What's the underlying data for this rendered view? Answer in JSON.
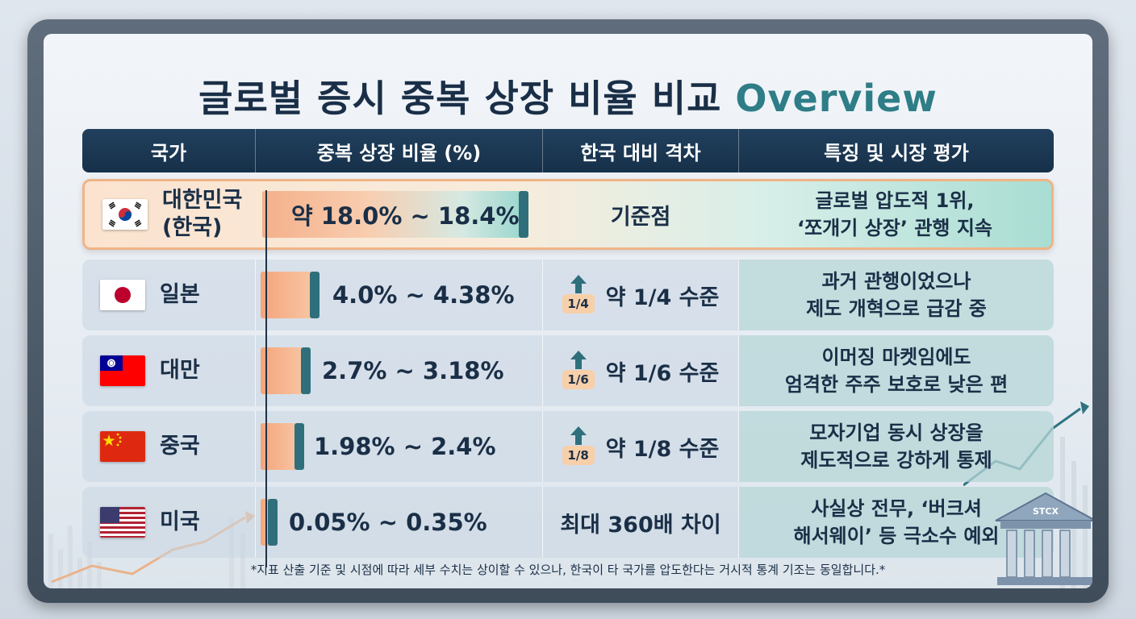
{
  "title": {
    "main": "글로벌 증시 중복 상장 비율 비교",
    "accent": "Overview"
  },
  "chart_data": {
    "type": "table",
    "columns": [
      "국가",
      "중복 상장 비율 (%)",
      "한국 대비 격차",
      "특징 및 시장 평가"
    ],
    "rows": [
      {
        "country": "대한민국",
        "country_sub": "(한국)",
        "flag": "korea-flag",
        "range_label": "약 18.0% ~ 18.4%",
        "min": 18.0,
        "max": 18.4,
        "gap_badge": "",
        "gap": "기준점",
        "desc_lines": [
          "글로벌 압도적 1위,",
          "‘쪼개기 상장’ 관행 지속"
        ],
        "highlight": true
      },
      {
        "country": "일본",
        "country_sub": "",
        "flag": "japan-flag",
        "range_label": "4.0% ~ 4.38%",
        "min": 4.0,
        "max": 4.38,
        "gap_badge": "1/4",
        "gap": "약 1/4 수준",
        "desc_lines": [
          "과거 관행이었으나",
          "제도 개혁으로 급감 중"
        ],
        "highlight": false
      },
      {
        "country": "대만",
        "country_sub": "",
        "flag": "taiwan-flag",
        "range_label": "2.7% ~ 3.18%",
        "min": 2.7,
        "max": 3.18,
        "gap_badge": "1/6",
        "gap": "약 1/6 수준",
        "desc_lines": [
          "이머징 마켓임에도",
          "엄격한 주주 보호로 낮은 편"
        ],
        "highlight": false
      },
      {
        "country": "중국",
        "country_sub": "",
        "flag": "china-flag",
        "range_label": "1.98% ~ 2.4%",
        "min": 1.98,
        "max": 2.4,
        "gap_badge": "1/8",
        "gap": "약 1/8 수준",
        "desc_lines": [
          "모자기업 동시 상장을",
          "제도적으로 강하게 통제"
        ],
        "highlight": false
      },
      {
        "country": "미국",
        "country_sub": "",
        "flag": "usa-flag",
        "range_label": "0.05% ~ 0.35%",
        "min": 0.05,
        "max": 0.35,
        "gap_badge": "",
        "gap": "최대 360배 차이",
        "desc_lines": [
          "사실상 전무, ‘버크셔",
          "해서웨이’ 등 극소수 예외"
        ],
        "highlight": false
      }
    ]
  },
  "footnote": "*지표 산출 기준 및 시점에 따라 세부 수치는 상이할 수 있으나, 한국이 타 국가를 압도한다는 거시적 통계 기조는 동일합니다.*",
  "decor": {
    "building_label": "STCX"
  },
  "colors": {
    "navy": "#1a2f47",
    "header": "#163049",
    "accent": "#2e7d87",
    "highlight_border": "#efb486",
    "bar_cap": "#2f6f7c"
  }
}
